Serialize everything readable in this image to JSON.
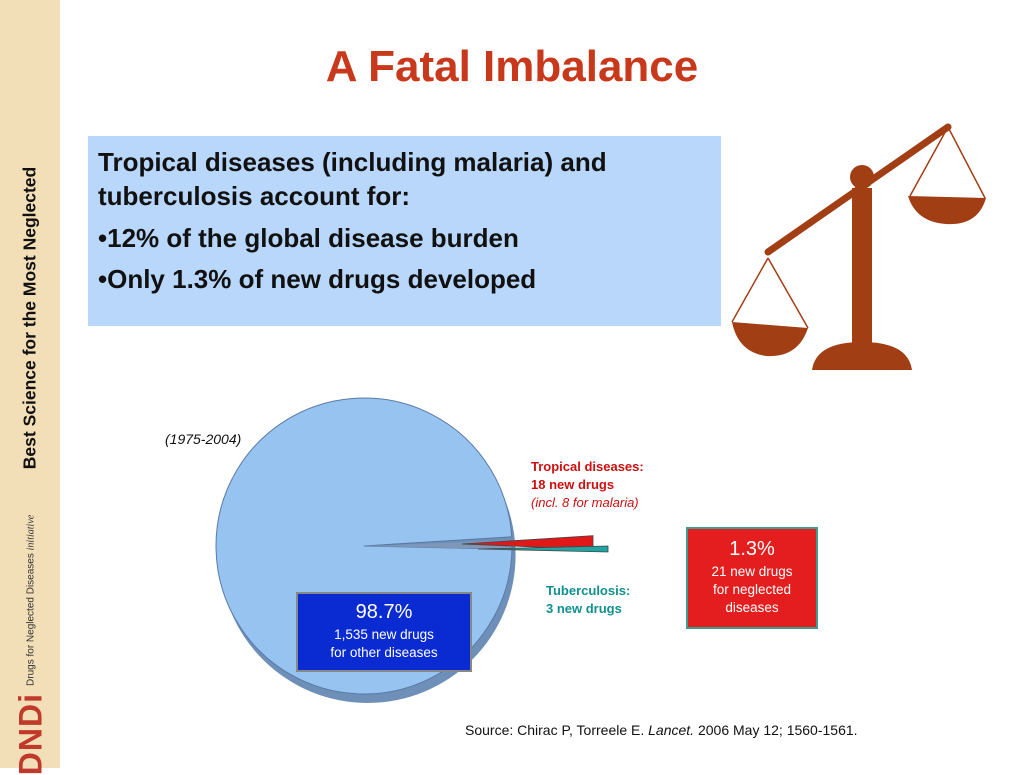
{
  "sidebar": {
    "tagline": "Best Science for the Most Neglected",
    "logo_text": "DNDi",
    "logo_subtitle": "Drugs for Neglected Diseases",
    "logo_subtitle_italic": "initiative"
  },
  "title": "A Fatal Imbalance",
  "infobox": {
    "intro": "Tropical diseases (including malaria) and tuberculosis account for:",
    "bullets": [
      "•12% of the global disease burden",
      "•Only 1.3% of new drugs developed"
    ]
  },
  "colors": {
    "title": "#c8381a",
    "infobox_bg": "#b8d7fb",
    "sidebar_bg": "#f2dfb7",
    "scale": "#a23e14",
    "pie_main": "#97c3f1",
    "tropical": "#e01818",
    "tuberculosis": "#20a5a5",
    "blue_box": "#0a2bd2",
    "red_box": "#e41e1e"
  },
  "chart_data": {
    "type": "pie",
    "subtitle": "(1975-2004)",
    "slices": [
      {
        "label": "Other diseases",
        "value": 1535,
        "color": "#97c3f1"
      },
      {
        "label": "Tropical diseases",
        "value": 18,
        "color": "#e01818"
      },
      {
        "label": "Tuberculosis",
        "value": 3,
        "color": "#20a5a5"
      }
    ],
    "annotations": {
      "tropical": {
        "title": "Tropical diseases:",
        "count": "18 new drugs",
        "note": "(incl. 8 for malaria)"
      },
      "tuberculosis": {
        "title": "Tuberculosis:",
        "count": "3 new drugs"
      },
      "other_box": {
        "percent": "98.7%",
        "line1": "1,535 new drugs",
        "line2": "for other diseases"
      },
      "neglected_box": {
        "percent": "1.3%",
        "line1": "21 new drugs",
        "line2": "for neglected",
        "line3": "diseases"
      }
    }
  },
  "source": {
    "prefix": "Source: Chirac P, Torreele E. ",
    "journal": "Lancet.",
    "suffix": " 2006 May 12; 1560-1561."
  },
  "scale_icon": "balance-scale-icon"
}
